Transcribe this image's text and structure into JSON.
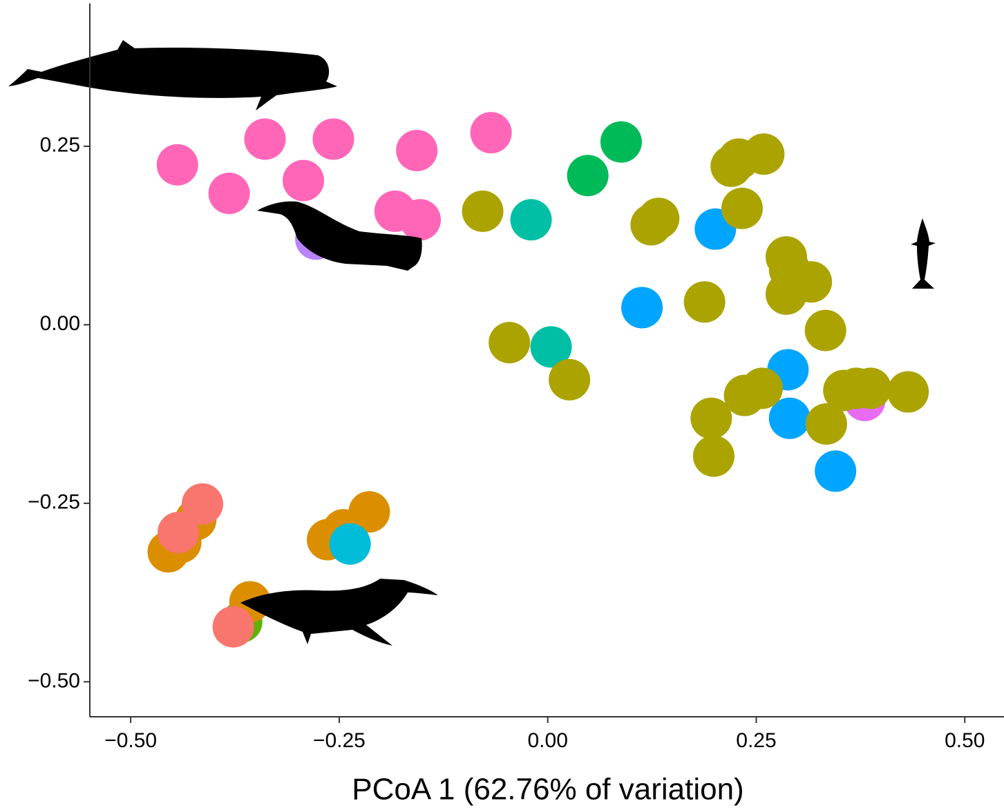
{
  "chart_data": {
    "type": "scatter",
    "x_label": "PCoA 1 (62.76% of variation)",
    "xlim": [
      -0.549,
      0.547
    ],
    "ylim": [
      -0.549,
      0.45
    ],
    "xticks": [
      {
        "value": -0.5,
        "label": "−0.50"
      },
      {
        "value": -0.25,
        "label": "−0.25"
      },
      {
        "value": 0,
        "label": "0.00"
      },
      {
        "value": 0.25,
        "label": "0.25"
      },
      {
        "value": 0.5,
        "label": "0.50"
      }
    ],
    "yticks": [
      {
        "value": -0.5,
        "label": "−0.50"
      },
      {
        "value": -0.25,
        "label": "−0.25"
      },
      {
        "value": 0,
        "label": "0.00"
      },
      {
        "value": 0.25,
        "label": "0.25"
      }
    ],
    "grid": false,
    "series": [
      {
        "color": "#ff66b8",
        "x": [
          -0.444,
          -0.339,
          -0.382,
          -0.293,
          -0.257,
          -0.157,
          -0.068,
          -0.183,
          -0.153
        ],
        "values": [
          0.224,
          0.26,
          0.184,
          0.202,
          0.26,
          0.244,
          0.269,
          0.159,
          0.147
        ]
      },
      {
        "color": "#b983ff",
        "x": [
          -0.278
        ],
        "values": [
          0.12
        ]
      },
      {
        "color": "#00ba58",
        "x": [
          0.048,
          0.088
        ],
        "values": [
          0.209,
          0.256
        ]
      },
      {
        "color": "#00bfa4",
        "x": [
          -0.02,
          0.004
        ],
        "values": [
          0.147,
          -0.031
        ]
      },
      {
        "color": "#00a5ff",
        "x": [
          0.201,
          0.113,
          0.288,
          0.29,
          0.345
        ],
        "values": [
          0.134,
          0.024,
          -0.063,
          -0.131,
          -0.205
        ]
      },
      {
        "color": "#e76bf3",
        "x": [
          0.38
        ],
        "values": [
          -0.106
        ]
      },
      {
        "color": "#aba300",
        "x": [
          -0.078,
          -0.046,
          0.026,
          0.124,
          0.133,
          0.188,
          0.22,
          0.229,
          0.259,
          0.233,
          0.286,
          0.29,
          0.316,
          0.286,
          0.333,
          0.236,
          0.257,
          0.196,
          0.199,
          0.334,
          0.355,
          0.37,
          0.387,
          0.432
        ],
        "values": [
          0.159,
          -0.025,
          -0.077,
          0.14,
          0.149,
          0.032,
          0.222,
          0.232,
          0.239,
          0.163,
          0.095,
          0.077,
          0.06,
          0.043,
          -0.008,
          -0.099,
          -0.089,
          -0.131,
          -0.184,
          -0.139,
          -0.092,
          -0.089,
          -0.089,
          -0.094
        ]
      },
      {
        "color": "#5eb300",
        "x": [
          -0.367
        ],
        "values": [
          -0.416
        ]
      },
      {
        "color": "#db8e00",
        "x": [
          -0.455,
          -0.44,
          -0.422,
          -0.264,
          -0.245,
          -0.214,
          -0.357
        ],
        "values": [
          -0.318,
          -0.305,
          -0.273,
          -0.301,
          -0.287,
          -0.262,
          -0.388
        ]
      },
      {
        "color": "#f8766d",
        "x": [
          -0.414,
          -0.443,
          -0.377
        ],
        "values": [
          -0.251,
          -0.291,
          -0.423
        ]
      },
      {
        "color": "#00bcd8",
        "x": [
          -0.237
        ],
        "values": [
          -0.307
        ]
      }
    ]
  }
}
